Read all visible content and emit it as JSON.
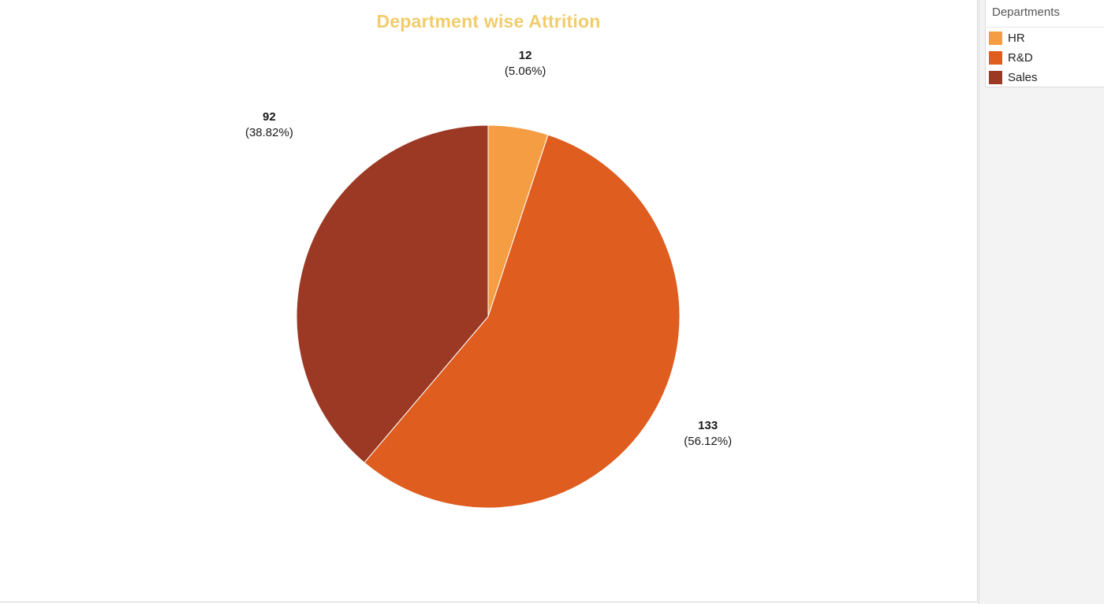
{
  "chart_data": {
    "type": "pie",
    "title": "Department wise Attrition",
    "categories": [
      "HR",
      "R&D",
      "Sales"
    ],
    "values": [
      12,
      133,
      92
    ],
    "percent_labels": [
      "(5.06%)",
      "(56.12%)",
      "(38.82%)"
    ],
    "colors": [
      "#f59d42",
      "#de5d1f",
      "#9c3925"
    ],
    "start_angle": "12 o'clock",
    "direction": "clockwise",
    "legend": {
      "title": "Departments",
      "position": "top-right",
      "items": [
        {
          "label": "HR",
          "color": "#f59d42"
        },
        {
          "label": "R&D",
          "color": "#de5d1f"
        },
        {
          "label": "Sales",
          "color": "#9c3925"
        }
      ]
    }
  }
}
